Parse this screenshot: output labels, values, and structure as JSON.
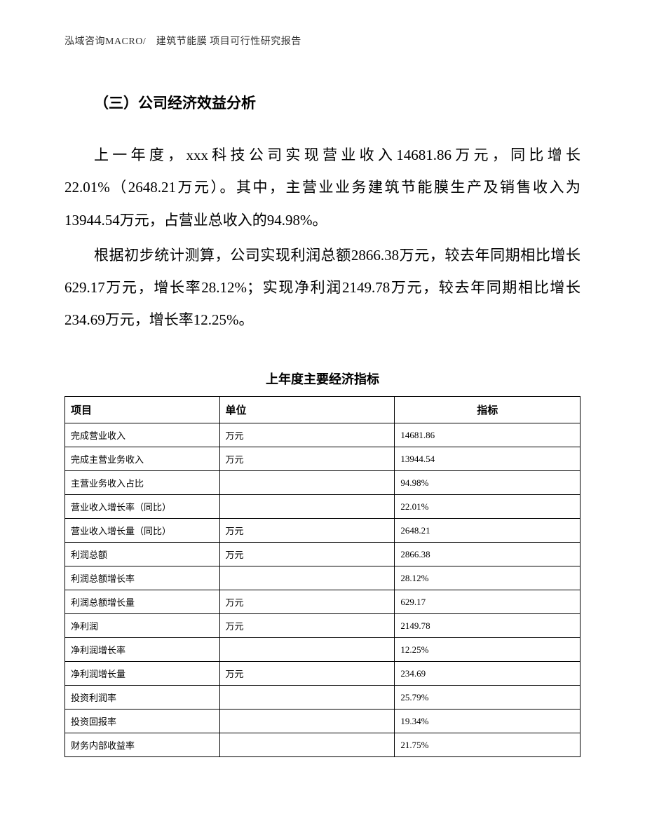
{
  "header": {
    "text": "泓域咨询MACRO/　建筑节能膜 项目可行性研究报告"
  },
  "section_title": "（三）公司经济效益分析",
  "paragraphs": [
    "上一年度，xxx科技公司实现营业收入14681.86万元，同比增长22.01%（2648.21万元）。其中，主营业业务建筑节能膜生产及销售收入为13944.54万元，占营业总收入的94.98%。",
    "根据初步统计测算，公司实现利润总额2866.38万元，较去年同期相比增长629.17万元，增长率28.12%；实现净利润2149.78万元，较去年同期相比增长234.69万元，增长率12.25%。"
  ],
  "table": {
    "title": "上年度主要经济指标",
    "columns": {
      "item": "项目",
      "unit": "单位",
      "value": "指标"
    },
    "rows": [
      {
        "item": "完成营业收入",
        "unit": "万元",
        "value": "14681.86"
      },
      {
        "item": "完成主营业务收入",
        "unit": "万元",
        "value": "13944.54"
      },
      {
        "item": "主营业务收入占比",
        "unit": "",
        "value": "94.98%"
      },
      {
        "item": "营业收入增长率（同比）",
        "unit": "",
        "value": "22.01%"
      },
      {
        "item": "营业收入增长量（同比）",
        "unit": "万元",
        "value": "2648.21"
      },
      {
        "item": "利润总额",
        "unit": "万元",
        "value": "2866.38"
      },
      {
        "item": "利润总额增长率",
        "unit": "",
        "value": "28.12%"
      },
      {
        "item": "利润总额增长量",
        "unit": "万元",
        "value": "629.17"
      },
      {
        "item": "净利润",
        "unit": "万元",
        "value": "2149.78"
      },
      {
        "item": "净利润增长率",
        "unit": "",
        "value": "12.25%"
      },
      {
        "item": "净利润增长量",
        "unit": "万元",
        "value": "234.69"
      },
      {
        "item": "投资利润率",
        "unit": "",
        "value": "25.79%"
      },
      {
        "item": "投资回报率",
        "unit": "",
        "value": "19.34%"
      },
      {
        "item": "财务内部收益率",
        "unit": "",
        "value": "21.75%"
      }
    ]
  }
}
